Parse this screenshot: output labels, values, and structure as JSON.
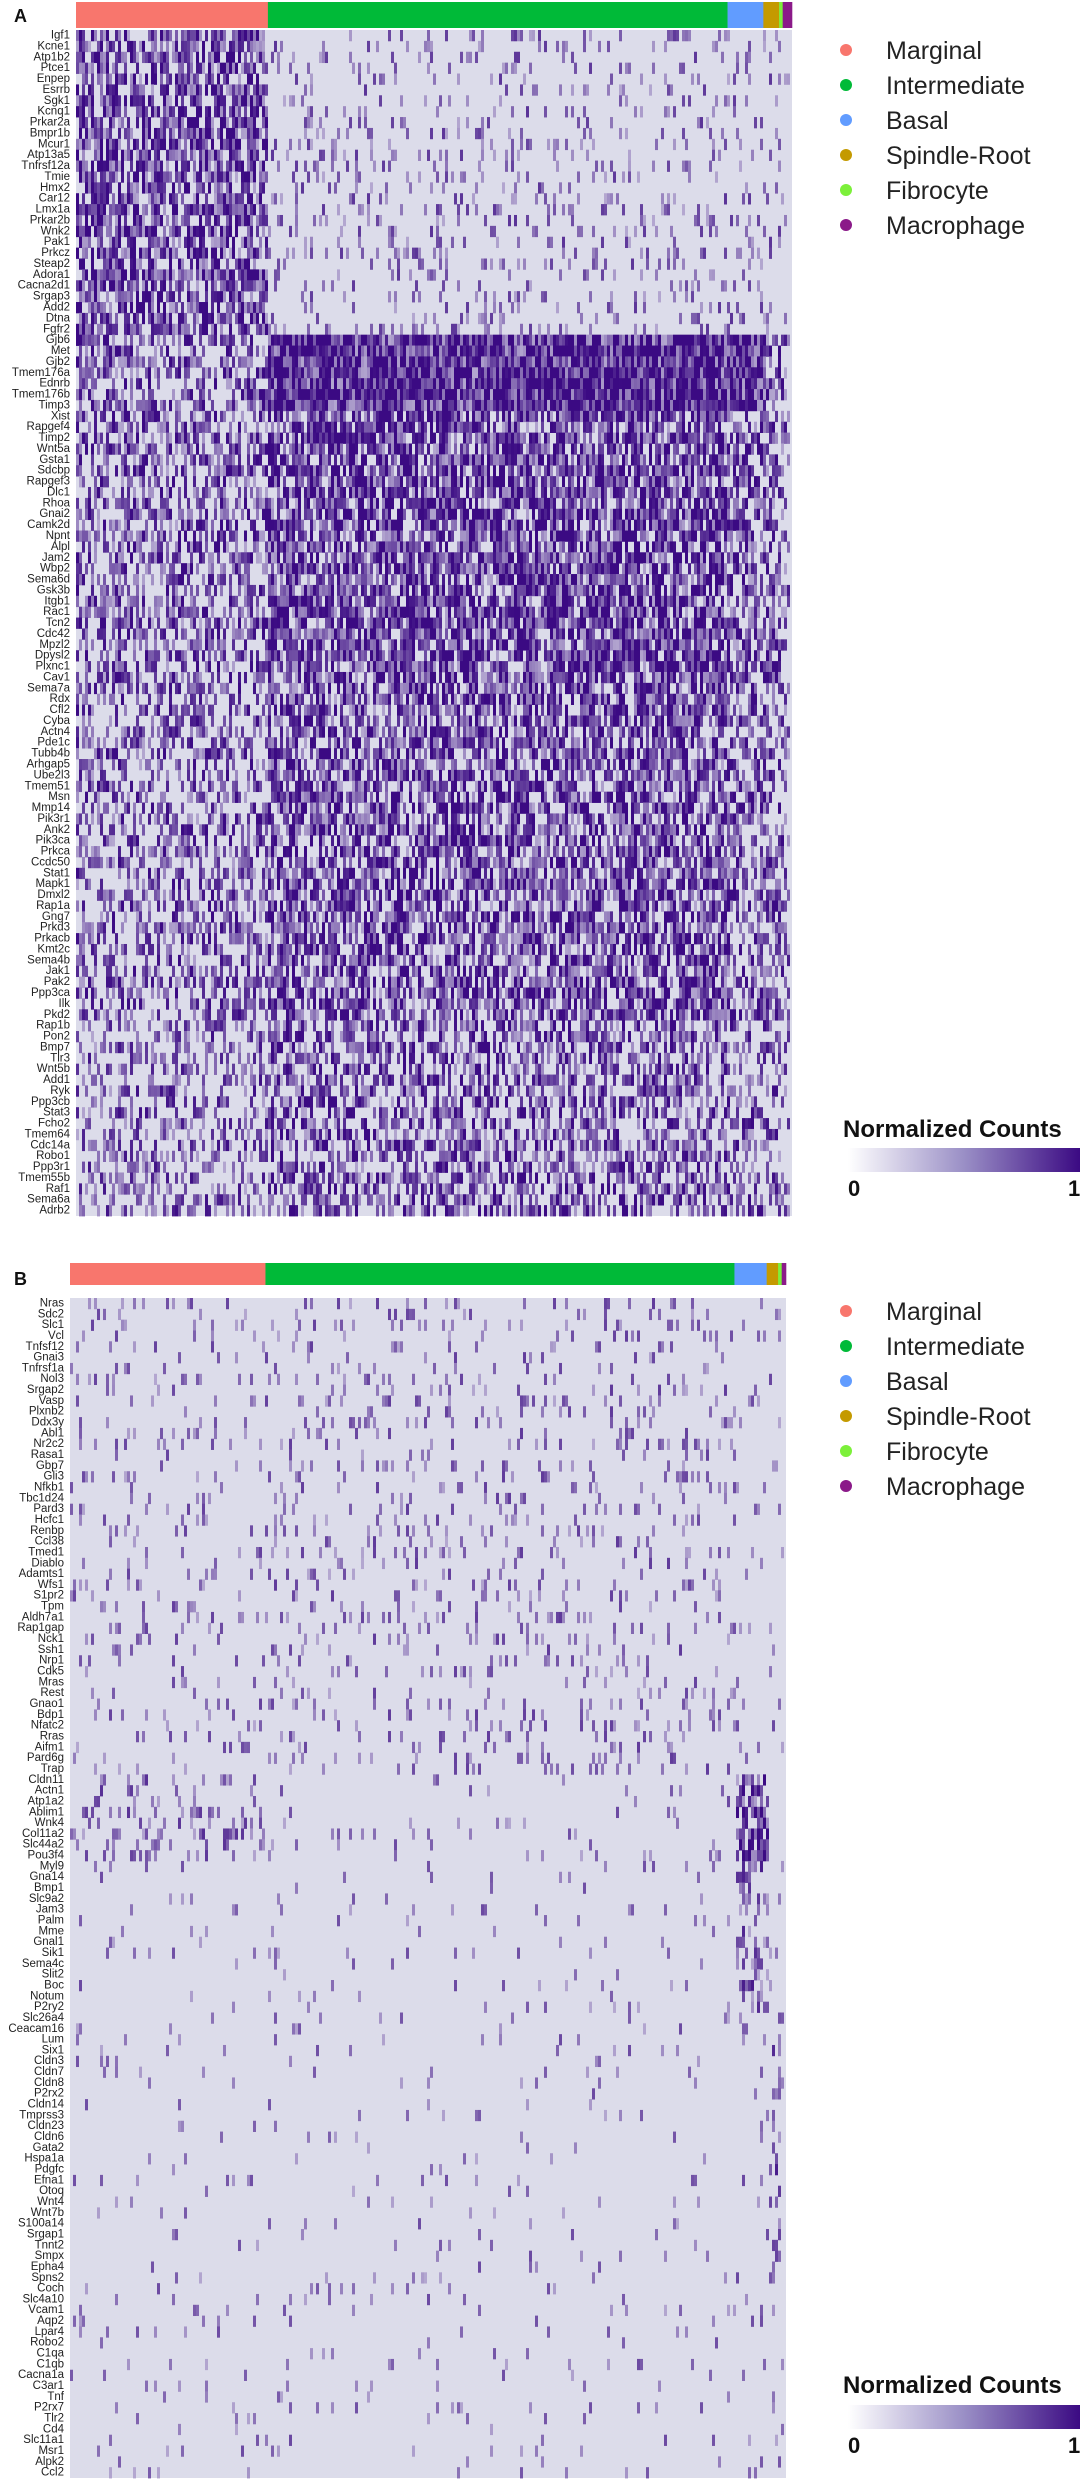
{
  "figure": {
    "description_label": "Heatmaps of normalized gene expression across stria vascularis cell types"
  },
  "colors": {
    "heat_low": "#dcdcea",
    "heat_high": "#3b0a83",
    "Marginal": "#f8766d",
    "Intermediate": "#00ba38",
    "Basal": "#619cff",
    "Spindle-Root": "#c49a00",
    "Fibrocyte": "#7cf03a",
    "Macrophage": "#8b1a89"
  },
  "chart_data": [
    {
      "type": "heatmap",
      "panel": "A",
      "value_label": "Normalized Counts",
      "value_range": [
        0,
        1
      ],
      "colorbar_ticks": [
        "0",
        "1"
      ],
      "cell_types": [
        "Marginal",
        "Intermediate",
        "Basal",
        "Spindle-Root",
        "Fibrocyte",
        "Macrophage"
      ],
      "cell_type_fractions": [
        0.268,
        0.642,
        0.05,
        0.022,
        0.005,
        0.013
      ],
      "genes": [
        "Igf1",
        "Kcne1",
        "Atp1b2",
        "Ptce1",
        "Enpep",
        "Esrrb",
        "Sgk1",
        "Kcnq1",
        "Prkar2a",
        "Bmpr1b",
        "Mcur1",
        "Atp13a5",
        "Tnfrsf12a",
        "Tmie",
        "Hmx2",
        "Car12",
        "Lmx1a",
        "Prkar2b",
        "Wnk2",
        "Pak1",
        "Prkcz",
        "Steap2",
        "Adora1",
        "Cacna2d1",
        "Srgap3",
        "Add2",
        "Dtna",
        "Fgfr2",
        "Gjb6",
        "Met",
        "Gjb2",
        "Tmem176a",
        "Ednrb",
        "Tmem176b",
        "Timp3",
        "Xist",
        "Rapgef4",
        "Timp2",
        "Wnt5a",
        "Gsta1",
        "Sdcbp",
        "Rapgef3",
        "Dlc1",
        "Rhoa",
        "Gnai2",
        "Camk2d",
        "Npnt",
        "Alpl",
        "Jam2",
        "Wbp2",
        "Sema6d",
        "Gsk3b",
        "Itgb1",
        "Rac1",
        "Tcn2",
        "Cdc42",
        "Mpzl2",
        "Dpysl2",
        "Plxnc1",
        "Cav1",
        "Sema7a",
        "Rdx",
        "Cfl2",
        "Cyba",
        "Actn4",
        "Pde1c",
        "Tubb4b",
        "Arhgap5",
        "Ube2l3",
        "Tmem51",
        "Msn",
        "Mmp14",
        "Pik3r1",
        "Ank2",
        "Pik3ca",
        "Prkca",
        "Ccdc50",
        "Stat1",
        "Mapk1",
        "Dmxl2",
        "Rap1a",
        "Gng7",
        "Prkd3",
        "Prkacb",
        "Kmt2c",
        "Sema4b",
        "Jak1",
        "Pak2",
        "Ppp3ca",
        "Ilk",
        "Pkd2",
        "Rap1b",
        "Pon2",
        "Bmp7",
        "Tlr3",
        "Wnt5b",
        "Add1",
        "Ryk",
        "Ppp3cb",
        "Stat3",
        "Fcho2",
        "Tmem64",
        "Cdc14a",
        "Robo1",
        "Ppp3r1",
        "Tmem55b",
        "Raf1",
        "Sema6a",
        "Adrb2"
      ],
      "group_mean_expression": {
        "Marginal": {
          "marker_block_1_28": 0.7,
          "marker_block_29_110": 0.45
        },
        "Intermediate": {
          "marker_block_1_28": 0.15,
          "marker_block_29_110": 0.7
        },
        "Basal": {
          "marker_block_1_28": 0.15,
          "marker_block_29_110": 0.55
        },
        "Spindle-Root": {
          "marker_block_1_28": 0.15,
          "marker_block_29_110": 0.5
        },
        "Fibrocyte": {
          "marker_block_1_28": 0.1,
          "marker_block_29_110": 0.4
        },
        "Macrophage": {
          "marker_block_1_28": 0.1,
          "marker_block_29_110": 0.3
        }
      }
    },
    {
      "type": "heatmap",
      "panel": "B",
      "value_label": "Normalized Counts",
      "value_range": [
        0,
        1
      ],
      "colorbar_ticks": [
        "0",
        "1"
      ],
      "cell_types": [
        "Marginal",
        "Intermediate",
        "Basal",
        "Spindle-Root",
        "Fibrocyte",
        "Macrophage"
      ],
      "cell_type_fractions": [
        0.273,
        0.655,
        0.045,
        0.016,
        0.005,
        0.006
      ],
      "genes": [
        "Nras",
        "Sdc2",
        "Slc1",
        "Vcl",
        "Tnfsf12",
        "Gnai3",
        "Tnfrsf1a",
        "Nol3",
        "Srgap2",
        "Vasp",
        "Plxnb2",
        "Ddx3y",
        "Abl1",
        "Nr2c2",
        "Rasa1",
        "Gbp7",
        "Gli3",
        "Nfkb1",
        "Tbc1d24",
        "Pard3",
        "Hcfc1",
        "Renbp",
        "Ccl38",
        "Tmed1",
        "Diablo",
        "Adamts1",
        "Wfs1",
        "S1pr2",
        "Tpm",
        "Aldh7a1",
        "Rap1gap",
        "Nck1",
        "Ssh1",
        "Nrp1",
        "Cdk5",
        "Mras",
        "Rest",
        "Gnao1",
        "Bdp1",
        "Nfatc2",
        "Rras",
        "Aifm1",
        "Pard6g",
        "Trap",
        "Cldn11",
        "Actn1",
        "Atp1a2",
        "Ablim1",
        "Wnk4",
        "Col11a2",
        "Slc44a2",
        "Pou3f4",
        "Myl9",
        "Gna14",
        "Bmp1",
        "Slc9a2",
        "Jam3",
        "Palm",
        "Mme",
        "Gnal1",
        "Sik1",
        "Sema4c",
        "Slit2",
        "Boc",
        "Notum",
        "P2ry2",
        "Slc26a4",
        "Ceacam16",
        "Lum",
        "Six1",
        "Cldn3",
        "Cldn7",
        "Cldn8",
        "P2rx2",
        "Cldn14",
        "Tmprss3",
        "Cldn23",
        "Cldn6",
        "Gata2",
        "Hspa1a",
        "Pdgfc",
        "Efna1",
        "Otoq",
        "Wnt4",
        "Wnt7b",
        "S100a14",
        "Srgap1",
        "Tnnt2",
        "Smpx",
        "Epha4",
        "Spns2",
        "Coch",
        "Slc4a10",
        "Vcam1",
        "Aqp2",
        "Lpar4",
        "Robo2",
        "C1qa",
        "C1qb",
        "Cacna1a",
        "C3ar1",
        "Tnf",
        "P2rx7",
        "Tlr2",
        "Cd4",
        "Slc11a1",
        "Msr1",
        "Alpk2",
        "Ccl2"
      ],
      "group_mean_expression": {
        "Marginal": {
          "general": 0.08
        },
        "Intermediate": {
          "general": 0.12
        },
        "Basal": {
          "Cldn11_to_Pou3f4": 0.75,
          "Myl9_to_P2ry2": 0.3
        },
        "Spindle-Root": {
          "Slc26a4_to_Spns2": 0.35
        },
        "Fibrocyte": {
          "Coch_to_Robo2": 0.3
        },
        "Macrophage": {
          "C1qa_to_Ccl2": 0.45
        }
      }
    }
  ]
}
